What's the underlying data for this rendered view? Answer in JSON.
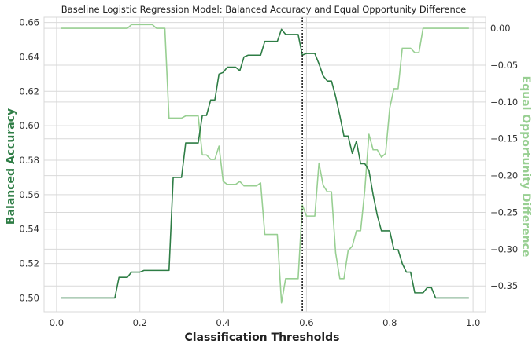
{
  "chart_data": {
    "type": "line",
    "title": "Baseline Logistic Regression Model: Balanced Accuracy and Equal Opportunity Difference",
    "xlabel": "Classification Thresholds",
    "ylabel_left": "Balanced Accuracy",
    "ylabel_right": "Equal Opportunity Difference",
    "xlim": [
      -0.03,
      1.03
    ],
    "ylim_left": [
      0.492,
      0.663
    ],
    "ylim_right": [
      -0.385,
      0.015
    ],
    "xticks": [
      0.0,
      0.2,
      0.4,
      0.6,
      0.8,
      1.0
    ],
    "xtick_labels": [
      "0.0",
      "0.2",
      "0.4",
      "0.6",
      "0.8",
      "1.0"
    ],
    "yticks_left": [
      0.5,
      0.52,
      0.54,
      0.56,
      0.58,
      0.6,
      0.62,
      0.64,
      0.66
    ],
    "ytick_labels_left": [
      "0.50",
      "0.52",
      "0.54",
      "0.56",
      "0.58",
      "0.60",
      "0.62",
      "0.64",
      "0.66"
    ],
    "yticks_right": [
      0.0,
      -0.05,
      -0.1,
      -0.15,
      -0.2,
      -0.25,
      -0.3,
      -0.35
    ],
    "ytick_labels_right": [
      "0.00",
      "−0.05",
      "−0.10",
      "−0.15",
      "−0.20",
      "−0.25",
      "−0.30",
      "−0.35"
    ],
    "grid": true,
    "vline_x": 0.59,
    "colors": {
      "balanced_accuracy": "#2e7d45",
      "eod": "#98cf92",
      "vline": "#222222",
      "grid": "#d9d9d9",
      "axis_text": "#333333"
    },
    "series": [
      {
        "axis": "left",
        "x": [
          0.01,
          0.02,
          0.03,
          0.04,
          0.05,
          0.06,
          0.07,
          0.08,
          0.09,
          0.1,
          0.11,
          0.12,
          0.13,
          0.14,
          0.15,
          0.16,
          0.17,
          0.18,
          0.19,
          0.2,
          0.21,
          0.22,
          0.23,
          0.24,
          0.25,
          0.26,
          0.27,
          0.28,
          0.29,
          0.3,
          0.31,
          0.32,
          0.33,
          0.34,
          0.35,
          0.36,
          0.37,
          0.38,
          0.39,
          0.4,
          0.41,
          0.42,
          0.43,
          0.44,
          0.45,
          0.46,
          0.47,
          0.48,
          0.49,
          0.5,
          0.51,
          0.52,
          0.53,
          0.54,
          0.55,
          0.56,
          0.57,
          0.58,
          0.59,
          0.6,
          0.61,
          0.62,
          0.63,
          0.64,
          0.65,
          0.66,
          0.67,
          0.68,
          0.69,
          0.7,
          0.71,
          0.72,
          0.73,
          0.74,
          0.75,
          0.76,
          0.77,
          0.78,
          0.79,
          0.8,
          0.81,
          0.82,
          0.83,
          0.84,
          0.85,
          0.86,
          0.87,
          0.88,
          0.89,
          0.9,
          0.91,
          0.92,
          0.93,
          0.94,
          0.95,
          0.96,
          0.97,
          0.98,
          0.99
        ],
        "values": [
          0.5,
          0.5,
          0.5,
          0.5,
          0.5,
          0.5,
          0.5,
          0.5,
          0.5,
          0.5,
          0.5,
          0.5,
          0.5,
          0.5,
          0.512,
          0.512,
          0.512,
          0.515,
          0.515,
          0.515,
          0.516,
          0.516,
          0.516,
          0.516,
          0.516,
          0.516,
          0.516,
          0.57,
          0.57,
          0.57,
          0.59,
          0.59,
          0.59,
          0.59,
          0.606,
          0.606,
          0.615,
          0.615,
          0.63,
          0.631,
          0.634,
          0.634,
          0.634,
          0.632,
          0.64,
          0.641,
          0.641,
          0.641,
          0.641,
          0.649,
          0.649,
          0.649,
          0.649,
          0.656,
          0.653,
          0.653,
          0.653,
          0.653,
          0.641,
          0.642,
          0.642,
          0.642,
          0.636,
          0.629,
          0.626,
          0.626,
          0.617,
          0.606,
          0.594,
          0.594,
          0.584,
          0.591,
          0.578,
          0.578,
          0.574,
          0.56,
          0.548,
          0.539,
          0.539,
          0.539,
          0.528,
          0.528,
          0.52,
          0.515,
          0.515,
          0.503,
          0.503,
          0.503,
          0.506,
          0.506,
          0.5,
          0.5,
          0.5,
          0.5,
          0.5,
          0.5,
          0.5,
          0.5,
          0.5
        ]
      },
      {
        "axis": "right",
        "x": [
          0.01,
          0.02,
          0.03,
          0.04,
          0.05,
          0.06,
          0.07,
          0.08,
          0.09,
          0.1,
          0.11,
          0.12,
          0.13,
          0.14,
          0.15,
          0.16,
          0.17,
          0.18,
          0.19,
          0.2,
          0.21,
          0.22,
          0.23,
          0.24,
          0.25,
          0.26,
          0.27,
          0.28,
          0.29,
          0.3,
          0.31,
          0.32,
          0.33,
          0.34,
          0.35,
          0.36,
          0.37,
          0.38,
          0.39,
          0.4,
          0.41,
          0.42,
          0.43,
          0.44,
          0.45,
          0.46,
          0.47,
          0.48,
          0.49,
          0.5,
          0.51,
          0.52,
          0.53,
          0.54,
          0.55,
          0.56,
          0.57,
          0.58,
          0.59,
          0.6,
          0.61,
          0.62,
          0.63,
          0.64,
          0.65,
          0.66,
          0.67,
          0.68,
          0.69,
          0.7,
          0.71,
          0.72,
          0.73,
          0.74,
          0.75,
          0.76,
          0.77,
          0.78,
          0.79,
          0.8,
          0.81,
          0.82,
          0.83,
          0.84,
          0.85,
          0.86,
          0.87,
          0.88,
          0.89,
          0.9,
          0.91,
          0.92,
          0.93,
          0.94,
          0.95,
          0.96,
          0.97,
          0.98,
          0.99
        ],
        "values": [
          0.0,
          0.0,
          0.0,
          0.0,
          0.0,
          0.0,
          0.0,
          0.0,
          0.0,
          0.0,
          0.0,
          0.0,
          0.0,
          0.0,
          0.0,
          0.0,
          0.0,
          0.005,
          0.005,
          0.005,
          0.005,
          0.005,
          0.005,
          0.0,
          0.0,
          0.0,
          -0.122,
          -0.122,
          -0.122,
          -0.122,
          -0.119,
          -0.119,
          -0.119,
          -0.119,
          -0.172,
          -0.172,
          -0.178,
          -0.178,
          -0.16,
          -0.208,
          -0.212,
          -0.212,
          -0.212,
          -0.208,
          -0.214,
          -0.214,
          -0.214,
          -0.214,
          -0.21,
          -0.28,
          -0.28,
          -0.28,
          -0.28,
          -0.373,
          -0.34,
          -0.34,
          -0.34,
          -0.34,
          -0.24,
          -0.255,
          -0.255,
          -0.255,
          -0.183,
          -0.213,
          -0.222,
          -0.222,
          -0.305,
          -0.34,
          -0.34,
          -0.302,
          -0.296,
          -0.275,
          -0.275,
          -0.22,
          -0.144,
          -0.165,
          -0.165,
          -0.175,
          -0.17,
          -0.108,
          -0.082,
          -0.082,
          -0.027,
          -0.027,
          -0.027,
          -0.033,
          -0.033,
          0.0,
          0.0,
          0.0,
          0.0,
          0.0,
          0.0,
          0.0,
          0.0,
          0.0,
          0.0,
          0.0,
          0.0
        ]
      }
    ]
  }
}
